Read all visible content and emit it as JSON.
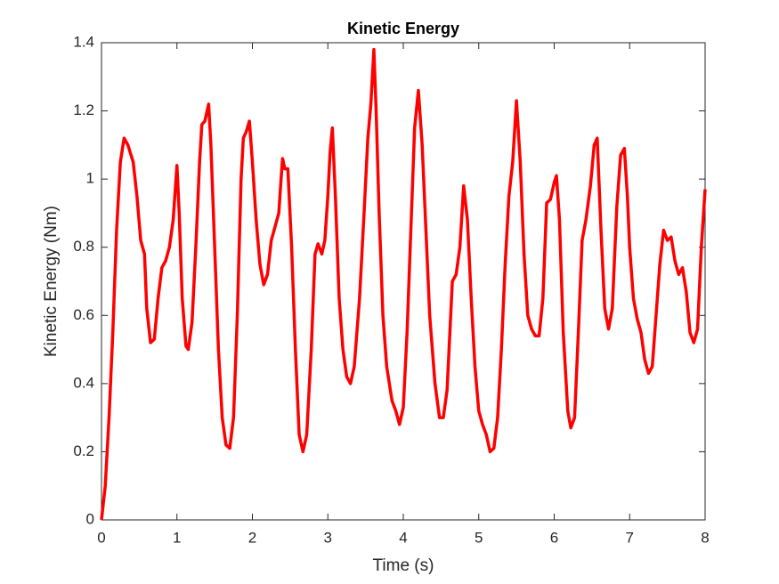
{
  "chart_data": {
    "type": "line",
    "title": "Kinetic Energy",
    "x_label": "Time (s)",
    "y_label": "Kinetic Energy (Nm)",
    "color": "#ff0000",
    "grid": false,
    "xlim": [
      0,
      8
    ],
    "ylim": [
      0,
      1.4
    ],
    "xticks": [
      0,
      1,
      2,
      3,
      4,
      5,
      6,
      7,
      8
    ],
    "yticks": [
      0,
      0.2,
      0.4,
      0.6,
      0.8,
      1,
      1.2,
      1.4
    ],
    "x": [
      0,
      0.05,
      0.1,
      0.15,
      0.2,
      0.25,
      0.3,
      0.35,
      0.42,
      0.47,
      0.52,
      0.57,
      0.6,
      0.65,
      0.7,
      0.75,
      0.8,
      0.85,
      0.9,
      0.95,
      1.0,
      1.03,
      1.07,
      1.12,
      1.15,
      1.2,
      1.25,
      1.3,
      1.33,
      1.37,
      1.42,
      1.45,
      1.5,
      1.55,
      1.6,
      1.65,
      1.7,
      1.75,
      1.8,
      1.85,
      1.88,
      1.92,
      1.96,
      2.0,
      2.05,
      2.1,
      2.15,
      2.2,
      2.25,
      2.3,
      2.35,
      2.38,
      2.4,
      2.43,
      2.47,
      2.52,
      2.57,
      2.62,
      2.67,
      2.72,
      2.78,
      2.83,
      2.87,
      2.92,
      2.96,
      3.0,
      3.03,
      3.06,
      3.1,
      3.15,
      3.2,
      3.25,
      3.3,
      3.35,
      3.42,
      3.48,
      3.53,
      3.57,
      3.61,
      3.64,
      3.68,
      3.73,
      3.78,
      3.85,
      3.9,
      3.95,
      4.0,
      4.05,
      4.1,
      4.15,
      4.2,
      4.25,
      4.3,
      4.35,
      4.42,
      4.48,
      4.53,
      4.58,
      4.65,
      4.7,
      4.75,
      4.8,
      4.85,
      4.9,
      4.95,
      5.0,
      5.05,
      5.1,
      5.15,
      5.2,
      5.25,
      5.3,
      5.35,
      5.4,
      5.45,
      5.5,
      5.55,
      5.6,
      5.65,
      5.7,
      5.75,
      5.8,
      5.85,
      5.9,
      5.95,
      6.0,
      6.03,
      6.07,
      6.12,
      6.18,
      6.22,
      6.27,
      6.32,
      6.37,
      6.42,
      6.48,
      6.53,
      6.57,
      6.62,
      6.67,
      6.72,
      6.77,
      6.83,
      6.88,
      6.93,
      6.97,
      7.0,
      7.05,
      7.1,
      7.15,
      7.2,
      7.25,
      7.3,
      7.35,
      7.4,
      7.45,
      7.5,
      7.55,
      7.6,
      7.65,
      7.7,
      7.75,
      7.8,
      7.85,
      7.9,
      7.95,
      8.0
    ],
    "values": [
      0,
      0.1,
      0.3,
      0.55,
      0.85,
      1.05,
      1.12,
      1.1,
      1.05,
      0.95,
      0.82,
      0.78,
      0.62,
      0.52,
      0.53,
      0.65,
      0.74,
      0.76,
      0.8,
      0.88,
      1.04,
      0.9,
      0.65,
      0.51,
      0.5,
      0.58,
      0.8,
      1.05,
      1.16,
      1.17,
      1.22,
      1.1,
      0.8,
      0.5,
      0.3,
      0.22,
      0.21,
      0.3,
      0.6,
      1.0,
      1.12,
      1.14,
      1.17,
      1.05,
      0.88,
      0.75,
      0.69,
      0.72,
      0.82,
      0.86,
      0.9,
      1.0,
      1.06,
      1.03,
      1.03,
      0.8,
      0.5,
      0.25,
      0.2,
      0.25,
      0.5,
      0.78,
      0.81,
      0.78,
      0.82,
      0.95,
      1.08,
      1.15,
      0.95,
      0.65,
      0.5,
      0.42,
      0.4,
      0.45,
      0.65,
      0.9,
      1.12,
      1.22,
      1.38,
      1.2,
      0.9,
      0.6,
      0.45,
      0.35,
      0.32,
      0.28,
      0.33,
      0.55,
      0.85,
      1.15,
      1.26,
      1.1,
      0.85,
      0.6,
      0.4,
      0.3,
      0.3,
      0.38,
      0.7,
      0.72,
      0.8,
      0.98,
      0.88,
      0.65,
      0.45,
      0.32,
      0.28,
      0.25,
      0.2,
      0.21,
      0.3,
      0.5,
      0.75,
      0.95,
      1.05,
      1.23,
      1.05,
      0.78,
      0.6,
      0.56,
      0.54,
      0.54,
      0.65,
      0.93,
      0.94,
      0.99,
      1.01,
      0.88,
      0.55,
      0.32,
      0.27,
      0.3,
      0.55,
      0.82,
      0.88,
      0.98,
      1.1,
      1.12,
      0.85,
      0.62,
      0.56,
      0.62,
      0.92,
      1.07,
      1.09,
      0.95,
      0.8,
      0.65,
      0.59,
      0.55,
      0.47,
      0.43,
      0.45,
      0.6,
      0.75,
      0.85,
      0.82,
      0.83,
      0.76,
      0.72,
      0.74,
      0.67,
      0.55,
      0.52,
      0.56,
      0.8,
      0.97
    ]
  }
}
